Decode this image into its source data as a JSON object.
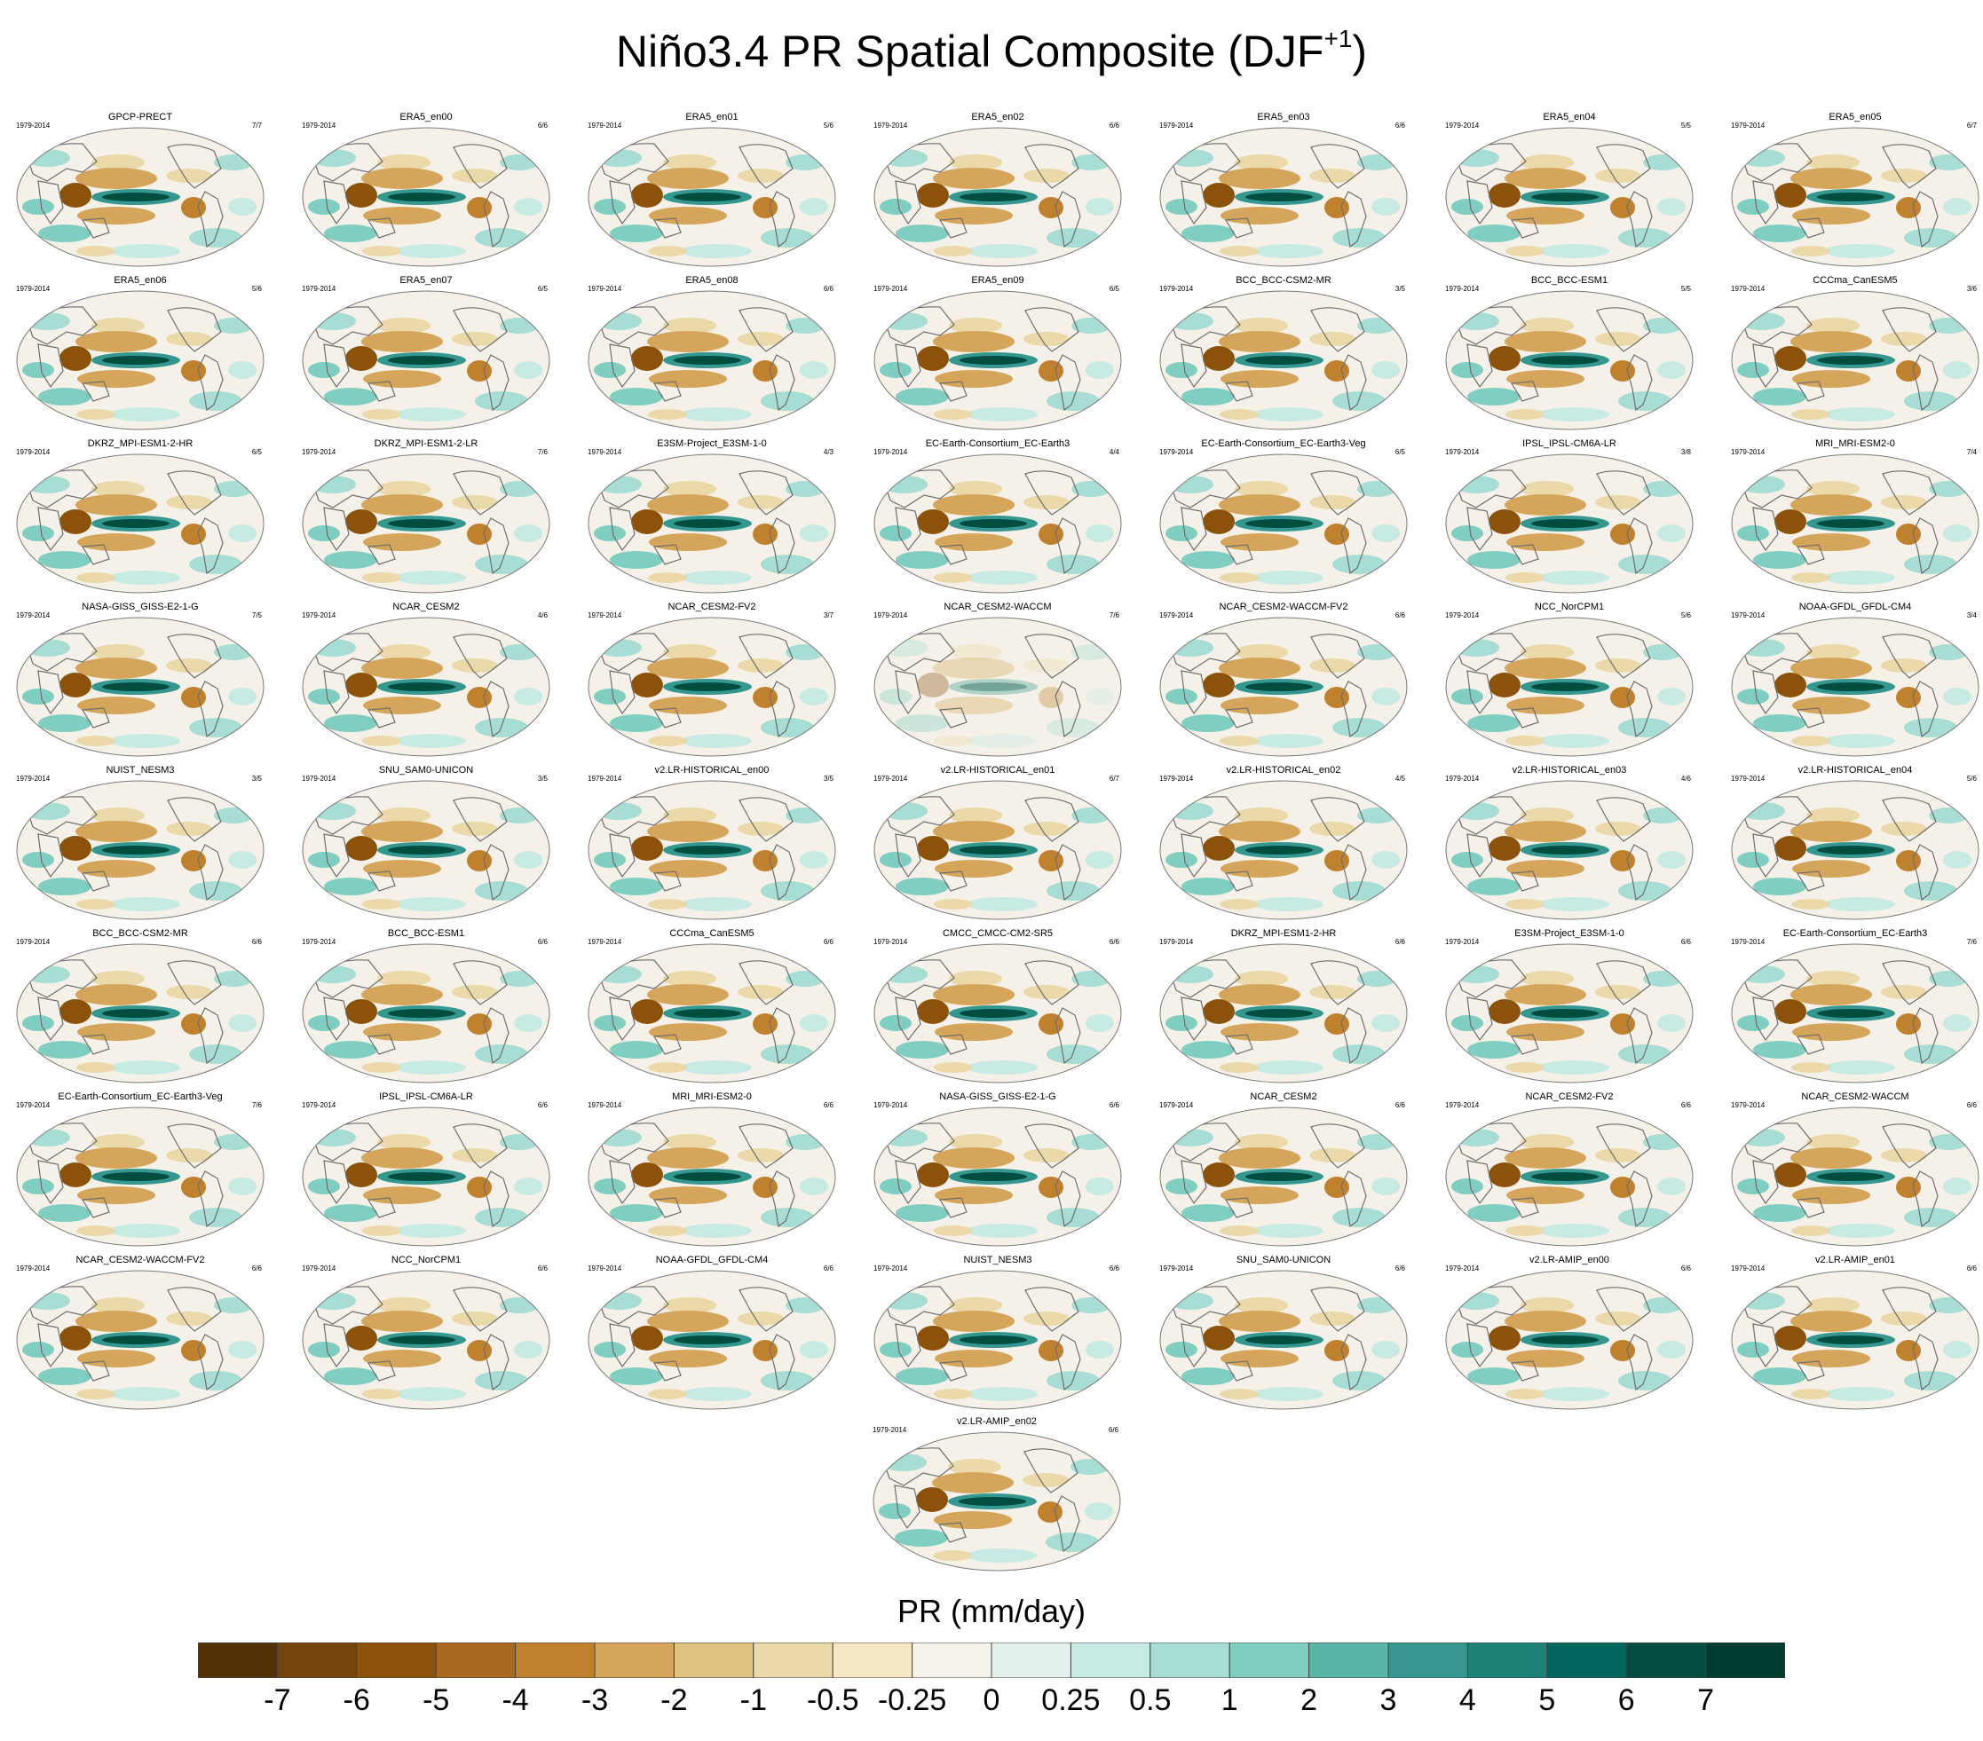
{
  "title": {
    "main": "Niño3.4 PR Spatial Composite (DJF",
    "sup": "+1",
    "end": ")"
  },
  "colorbar": {
    "label": "PR (mm/day)",
    "ticks": [
      "-7",
      "-6",
      "-5",
      "-4",
      "-3",
      "-2",
      "-1",
      "-0.5",
      "-0.25",
      "0",
      "0.25",
      "0.5",
      "1",
      "2",
      "3",
      "4",
      "5",
      "6",
      "7"
    ],
    "colors": [
      "#543005",
      "#75430c",
      "#8c510a",
      "#a9691e",
      "#bf812d",
      "#d4a55a",
      "#dfc27d",
      "#ecd9a9",
      "#f6e8c3",
      "#f5f2ea",
      "#e4f1ef",
      "#c7eae5",
      "#a7ddd4",
      "#80cdc1",
      "#5ab4a8",
      "#35978f",
      "#1d8278",
      "#01665e",
      "#014d40",
      "#003c30"
    ]
  },
  "chart_data": {
    "type": "heatmap",
    "title": "Niño3.4 PR Spatial Composite (DJF+1)",
    "colorbar_label": "PR (mm/day)",
    "colorbar_ticks": [
      -7,
      -6,
      -5,
      -4,
      -3,
      -2,
      -1,
      -0.5,
      -0.25,
      0,
      0.25,
      0.5,
      1,
      2,
      3,
      4,
      5,
      6,
      7
    ],
    "panels": [
      {
        "name": "GPCP-PRECT",
        "years": "1979-2014",
        "count": "7/7"
      },
      {
        "name": "ERA5_en00",
        "years": "1979-2014",
        "count": "6/6"
      },
      {
        "name": "ERA5_en01",
        "years": "1979-2014",
        "count": "5/6"
      },
      {
        "name": "ERA5_en02",
        "years": "1979-2014",
        "count": "6/6"
      },
      {
        "name": "ERA5_en03",
        "years": "1979-2014",
        "count": "6/6"
      },
      {
        "name": "ERA5_en04",
        "years": "1979-2014",
        "count": "5/5"
      },
      {
        "name": "ERA5_en05",
        "years": "1979-2014",
        "count": "6/7"
      },
      {
        "name": "ERA5_en06",
        "years": "1979-2014",
        "count": "5/6"
      },
      {
        "name": "ERA5_en07",
        "years": "1979-2014",
        "count": "6/5"
      },
      {
        "name": "ERA5_en08",
        "years": "1979-2014",
        "count": "6/6"
      },
      {
        "name": "ERA5_en09",
        "years": "1979-2014",
        "count": "6/5"
      },
      {
        "name": "BCC_BCC-CSM2-MR",
        "years": "1979-2014",
        "count": "3/5"
      },
      {
        "name": "BCC_BCC-ESM1",
        "years": "1979-2014",
        "count": "5/5"
      },
      {
        "name": "CCCma_CanESM5",
        "years": "1979-2014",
        "count": "3/6"
      },
      {
        "name": "DKRZ_MPI-ESM1-2-HR",
        "years": "1979-2014",
        "count": "6/5"
      },
      {
        "name": "DKRZ_MPI-ESM1-2-LR",
        "years": "1979-2014",
        "count": "7/6"
      },
      {
        "name": "E3SM-Project_E3SM-1-0",
        "years": "1979-2014",
        "count": "4/3"
      },
      {
        "name": "EC-Earth-Consortium_EC-Earth3",
        "years": "1979-2014",
        "count": "4/4"
      },
      {
        "name": "EC-Earth-Consortium_EC-Earth3-Veg",
        "years": "1979-2014",
        "count": "6/5"
      },
      {
        "name": "IPSL_IPSL-CM6A-LR",
        "years": "1979-2014",
        "count": "3/8"
      },
      {
        "name": "MRI_MRI-ESM2-0",
        "years": "1979-2014",
        "count": "7/4"
      },
      {
        "name": "NASA-GISS_GISS-E2-1-G",
        "years": "1979-2014",
        "count": "7/5"
      },
      {
        "name": "NCAR_CESM2",
        "years": "1979-2014",
        "count": "4/6"
      },
      {
        "name": "NCAR_CESM2-FV2",
        "years": "1979-2014",
        "count": "3/7"
      },
      {
        "name": "NCAR_CESM2-WACCM",
        "years": "1979-2014",
        "count": "7/6"
      },
      {
        "name": "NCAR_CESM2-WACCM-FV2",
        "years": "1979-2014",
        "count": "6/6"
      },
      {
        "name": "NCC_NorCPM1",
        "years": "1979-2014",
        "count": "5/6"
      },
      {
        "name": "NOAA-GFDL_GFDL-CM4",
        "years": "1979-2014",
        "count": "3/4"
      },
      {
        "name": "NUIST_NESM3",
        "years": "1979-2014",
        "count": "3/5"
      },
      {
        "name": "SNU_SAM0-UNICON",
        "years": "1979-2014",
        "count": "3/5"
      },
      {
        "name": "v2.LR-HISTORICAL_en00",
        "years": "1979-2014",
        "count": "3/5"
      },
      {
        "name": "v2.LR-HISTORICAL_en01",
        "years": "1979-2014",
        "count": "6/7"
      },
      {
        "name": "v2.LR-HISTORICAL_en02",
        "years": "1979-2014",
        "count": "4/5"
      },
      {
        "name": "v2.LR-HISTORICAL_en03",
        "years": "1979-2014",
        "count": "4/6"
      },
      {
        "name": "v2.LR-HISTORICAL_en04",
        "years": "1979-2014",
        "count": "5/6"
      },
      {
        "name": "BCC_BCC-CSM2-MR",
        "years": "1979-2014",
        "count": "6/6"
      },
      {
        "name": "BCC_BCC-ESM1",
        "years": "1979-2014",
        "count": "6/6"
      },
      {
        "name": "CCCma_CanESM5",
        "years": "1979-2014",
        "count": "6/6"
      },
      {
        "name": "CMCC_CMCC-CM2-SR5",
        "years": "1979-2014",
        "count": "6/6"
      },
      {
        "name": "DKRZ_MPI-ESM1-2-HR",
        "years": "1979-2014",
        "count": "6/6"
      },
      {
        "name": "E3SM-Project_E3SM-1-0",
        "years": "1979-2014",
        "count": "6/6"
      },
      {
        "name": "EC-Earth-Consortium_EC-Earth3",
        "years": "1979-2014",
        "count": "7/6"
      },
      {
        "name": "EC-Earth-Consortium_EC-Earth3-Veg",
        "years": "1979-2014",
        "count": "7/6"
      },
      {
        "name": "IPSL_IPSL-CM6A-LR",
        "years": "1979-2014",
        "count": "6/6"
      },
      {
        "name": "MRI_MRI-ESM2-0",
        "years": "1979-2014",
        "count": "6/6"
      },
      {
        "name": "NASA-GISS_GISS-E2-1-G",
        "years": "1979-2014",
        "count": "6/6"
      },
      {
        "name": "NCAR_CESM2",
        "years": "1979-2014",
        "count": "6/6"
      },
      {
        "name": "NCAR_CESM2-FV2",
        "years": "1979-2014",
        "count": "6/6"
      },
      {
        "name": "NCAR_CESM2-WACCM",
        "years": "1979-2014",
        "count": "6/6"
      },
      {
        "name": "NCAR_CESM2-WACCM-FV2",
        "years": "1979-2014",
        "count": "6/6"
      },
      {
        "name": "NCC_NorCPM1",
        "years": "1979-2014",
        "count": "6/6"
      },
      {
        "name": "NOAA-GFDL_GFDL-CM4",
        "years": "1979-2014",
        "count": "6/6"
      },
      {
        "name": "NUIST_NESM3",
        "years": "1979-2014",
        "count": "6/6"
      },
      {
        "name": "SNU_SAM0-UNICON",
        "years": "1979-2014",
        "count": "6/6"
      },
      {
        "name": "v2.LR-AMIP_en00",
        "years": "1979-2014",
        "count": "6/6"
      },
      {
        "name": "v2.LR-AMIP_en01",
        "years": "1979-2014",
        "count": "6/6"
      },
      {
        "name": "v2.LR-AMIP_en02",
        "years": "1979-2014",
        "count": "6/6"
      }
    ]
  }
}
